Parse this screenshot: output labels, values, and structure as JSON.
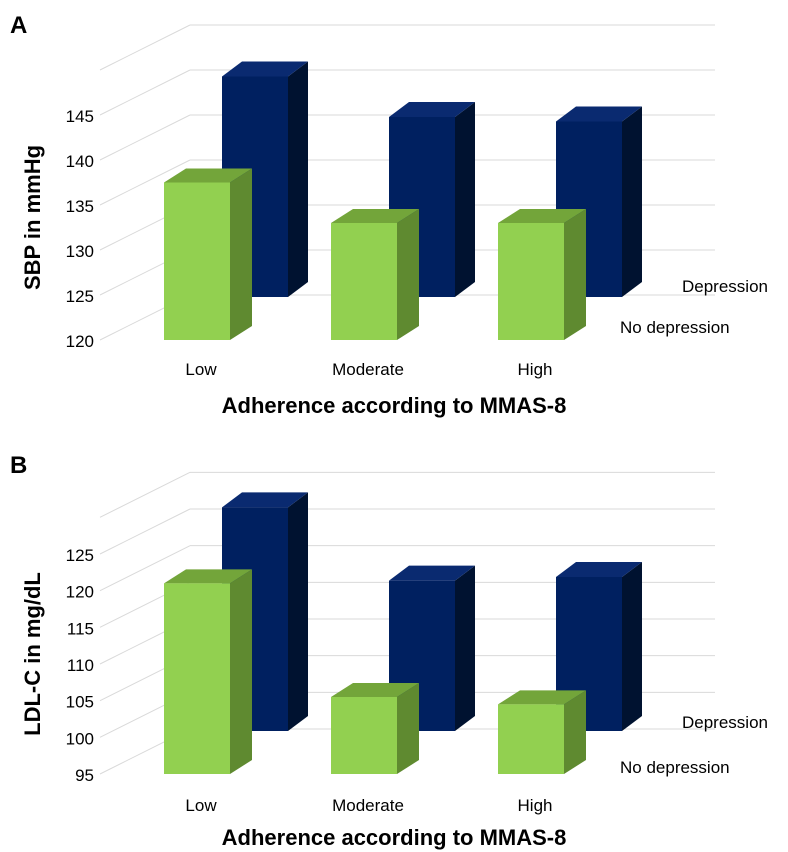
{
  "colors": {
    "no_depression_front": "#92d050",
    "no_depression_side": "#5f8a30",
    "no_depression_top": "#73a53a",
    "depression_front": "#002060",
    "depression_side": "#001230",
    "depression_top": "#0a2a70",
    "grid": "#d9d9d9",
    "text": "#000000"
  },
  "chart_data": [
    {
      "type": "bar",
      "panel_label": "A",
      "categories": [
        "Low",
        "Moderate",
        "High"
      ],
      "series": [
        {
          "name": "No depression",
          "values": [
            137.5,
            133,
            133
          ]
        },
        {
          "name": "Depression",
          "values": [
            144.5,
            140,
            139.5
          ]
        }
      ],
      "xlabel": "Adherence according to MMAS-8",
      "ylabel": "SBP in mmHg",
      "ylim": [
        120,
        145
      ],
      "yticks": [
        120,
        125,
        130,
        135,
        140,
        145
      ],
      "grid": true,
      "three_d": true
    },
    {
      "type": "bar",
      "panel_label": "B",
      "categories": [
        "Low",
        "Moderate",
        "High"
      ],
      "series": [
        {
          "name": "No depression",
          "values": [
            121,
            105.5,
            104.5
          ]
        },
        {
          "name": "Depression",
          "values": [
            125.5,
            115.5,
            116
          ]
        }
      ],
      "xlabel": "Adherence according to MMAS-8",
      "ylabel": "LDL-C in mg/dL",
      "ylim": [
        95,
        125
      ],
      "yticks": [
        95,
        100,
        105,
        110,
        115,
        120,
        125
      ],
      "grid": true,
      "three_d": true
    }
  ]
}
